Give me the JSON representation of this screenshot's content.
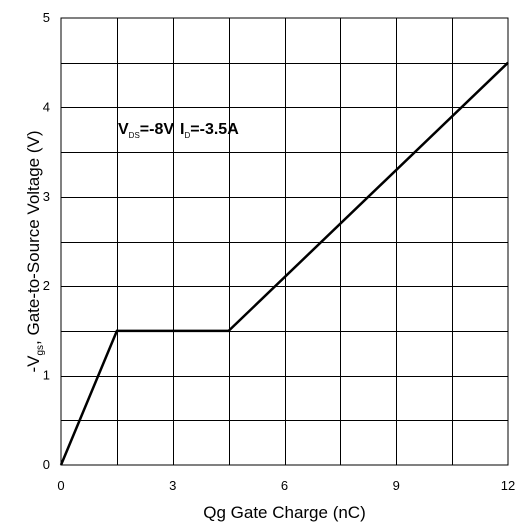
{
  "chart_data": {
    "type": "line",
    "xlabel": "Qg Gate Charge (nC)",
    "ylabel": {
      "prefix": "-V",
      "subscript": "gs",
      "suffix": ", Gate-to-Source Voltage (V)"
    },
    "xlim": [
      0,
      12
    ],
    "ylim": [
      0,
      5
    ],
    "x_ticks": [
      0,
      3,
      6,
      9,
      12
    ],
    "y_ticks": [
      0,
      1,
      2,
      3,
      4,
      5
    ],
    "x_grid_step": 1.5,
    "y_grid_step": 0.5,
    "grid": true,
    "series": [
      {
        "x": [
          0,
          1.5,
          4.5,
          12
        ],
        "y": [
          0,
          1.5,
          1.5,
          4.5
        ]
      }
    ],
    "annotation": {
      "vds_symbol": "V",
      "vds_subscript": "DS",
      "vds_value": "=-8V",
      "id_symbol": "I",
      "id_subscript": "D",
      "id_value": "=-3.5A"
    },
    "colors": {
      "line": "#000000",
      "grid": "#000000",
      "background": "#ffffff"
    }
  }
}
